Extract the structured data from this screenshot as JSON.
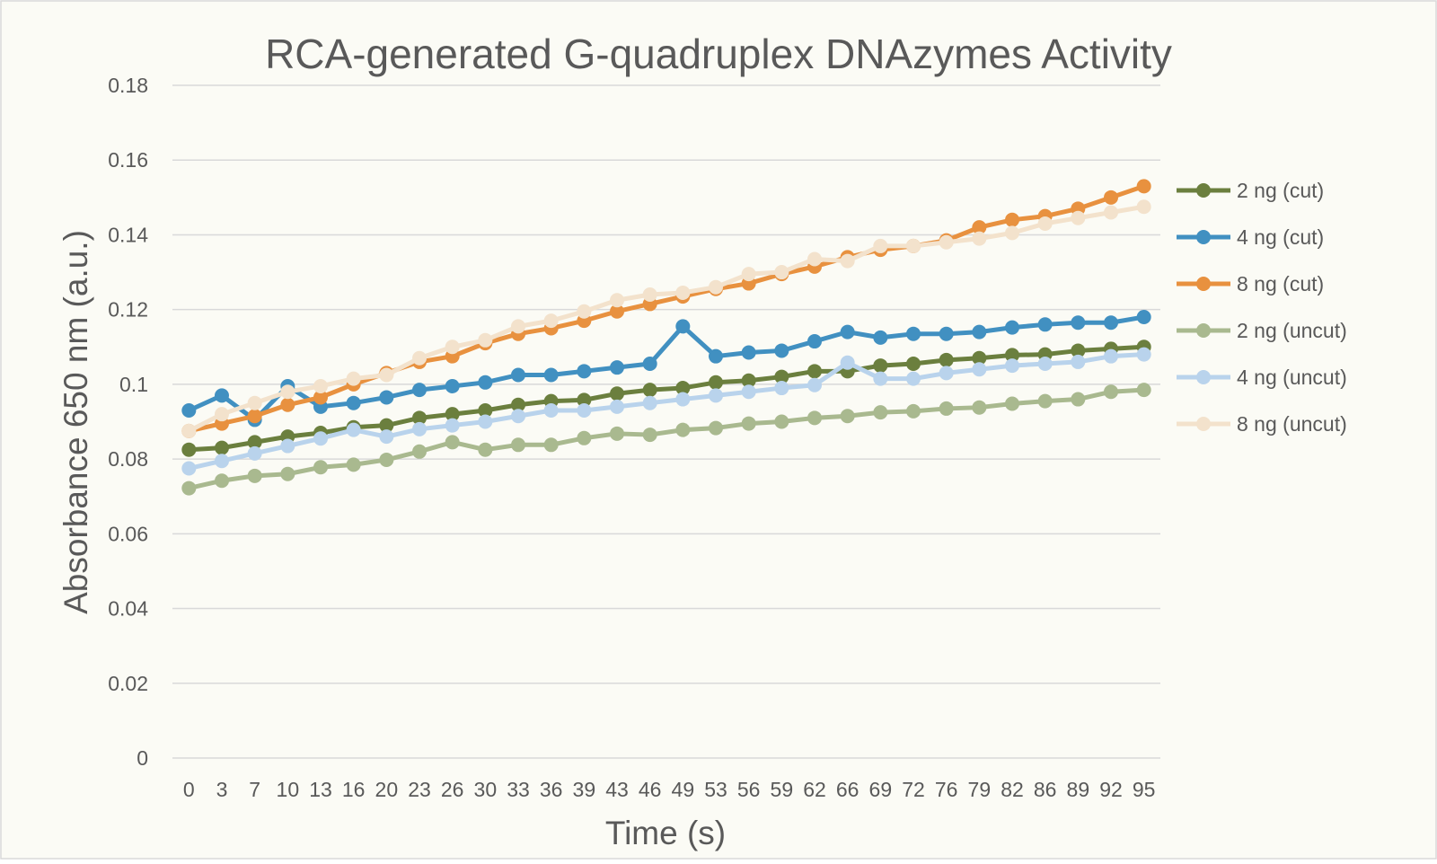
{
  "chart_data": {
    "type": "line",
    "title": "RCA-generated G-quadruplex DNAzymes Activity",
    "xlabel": "Time (s)",
    "ylabel": "Absorbance 650 nm (a.u.)",
    "ylim": [
      0,
      0.18
    ],
    "yticks": [
      "0",
      "0.02",
      "0.04",
      "0.06",
      "0.08",
      "0.1",
      "0.12",
      "0.14",
      "0.16",
      "0.18"
    ],
    "grid": true,
    "legend_position": "right",
    "categories": [
      "0",
      "3",
      "7",
      "10",
      "13",
      "16",
      "20",
      "23",
      "26",
      "30",
      "33",
      "36",
      "39",
      "43",
      "46",
      "49",
      "53",
      "56",
      "59",
      "62",
      "66",
      "69",
      "72",
      "76",
      "79",
      "82",
      "86",
      "89",
      "92",
      "95"
    ],
    "series": [
      {
        "name": "2 ng (cut)",
        "color": "#6b7f3e",
        "values": [
          0.0825,
          0.083,
          0.0845,
          0.086,
          0.087,
          0.0885,
          0.089,
          0.091,
          0.092,
          0.093,
          0.0945,
          0.0955,
          0.0958,
          0.0975,
          0.0985,
          0.099,
          0.1005,
          0.101,
          0.102,
          0.1035,
          0.1035,
          0.105,
          0.1055,
          0.1065,
          0.107,
          0.1078,
          0.108,
          0.109,
          0.1095,
          0.11
        ]
      },
      {
        "name": "4 ng (cut)",
        "color": "#4190c1",
        "values": [
          0.093,
          0.097,
          0.0905,
          0.0995,
          0.094,
          0.095,
          0.0965,
          0.0985,
          0.0995,
          0.1005,
          0.1025,
          0.1025,
          0.1035,
          0.1045,
          0.1055,
          0.1155,
          0.1075,
          0.1085,
          0.109,
          0.1115,
          0.114,
          0.1125,
          0.1135,
          0.1135,
          0.114,
          0.1152,
          0.116,
          0.1165,
          0.1165,
          0.118
        ]
      },
      {
        "name": "8 ng (cut)",
        "color": "#e8913f",
        "values": [
          0.0875,
          0.0895,
          0.0915,
          0.0945,
          0.0965,
          0.1,
          0.103,
          0.106,
          0.1075,
          0.111,
          0.1135,
          0.115,
          0.117,
          0.1195,
          0.1215,
          0.1235,
          0.1255,
          0.127,
          0.1295,
          0.1315,
          0.134,
          0.136,
          0.137,
          0.1385,
          0.142,
          0.144,
          0.145,
          0.147,
          0.15,
          0.153
        ]
      },
      {
        "name": "2 ng (uncut)",
        "color": "#a9b98f",
        "values": [
          0.0722,
          0.0742,
          0.0755,
          0.076,
          0.0778,
          0.0785,
          0.0798,
          0.082,
          0.0845,
          0.0825,
          0.0838,
          0.0838,
          0.0856,
          0.0868,
          0.0865,
          0.0878,
          0.0883,
          0.0895,
          0.09,
          0.091,
          0.0915,
          0.0925,
          0.0928,
          0.0935,
          0.0938,
          0.0948,
          0.0955,
          0.096,
          0.098,
          0.0985
        ]
      },
      {
        "name": "4 ng (uncut)",
        "color": "#b9d3ec",
        "values": [
          0.0775,
          0.0795,
          0.0815,
          0.0835,
          0.0855,
          0.0878,
          0.086,
          0.088,
          0.089,
          0.09,
          0.0915,
          0.093,
          0.093,
          0.094,
          0.095,
          0.096,
          0.097,
          0.098,
          0.099,
          0.0998,
          0.1058,
          0.1015,
          0.1015,
          0.103,
          0.104,
          0.105,
          0.1055,
          0.106,
          0.1075,
          0.108
        ]
      },
      {
        "name": "8 ng (uncut)",
        "color": "#f3e2cc",
        "values": [
          0.0875,
          0.092,
          0.095,
          0.098,
          0.0995,
          0.1015,
          0.1025,
          0.107,
          0.11,
          0.1118,
          0.1155,
          0.117,
          0.1195,
          0.1225,
          0.124,
          0.1245,
          0.126,
          0.1295,
          0.13,
          0.1335,
          0.133,
          0.137,
          0.137,
          0.138,
          0.139,
          0.1405,
          0.143,
          0.1445,
          0.146,
          0.1475
        ]
      }
    ]
  }
}
